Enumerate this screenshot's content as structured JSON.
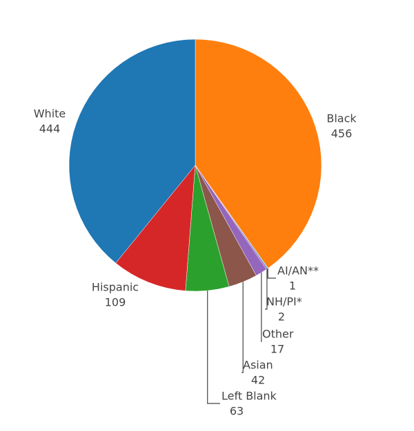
{
  "chart_data": {
    "type": "pie",
    "categories": [
      "Black",
      "AI/AN**",
      "NH/PI*",
      "Other",
      "Asian",
      "Left Blank",
      "Hispanic",
      "White"
    ],
    "values": [
      456,
      1,
      2,
      17,
      42,
      63,
      109,
      444
    ],
    "colors": [
      "#ff7f0e",
      "#17becf",
      "#9467bd",
      "#9467bd",
      "#8c564b",
      "#2ca02c",
      "#d62728",
      "#1f77b4"
    ]
  }
}
